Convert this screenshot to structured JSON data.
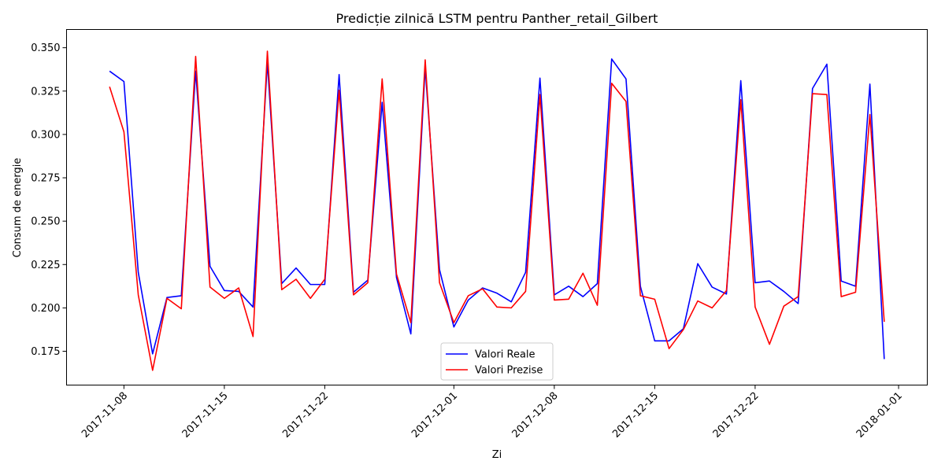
{
  "chart_data": {
    "type": "line",
    "title": "Predicție zilnică LSTM pentru Panther_retail_Gilbert",
    "xlabel": "Zi",
    "ylabel": "Consum de energie",
    "x_start": "2017-11-07",
    "x_ticks": [
      "2017-11-08",
      "2017-11-15",
      "2017-11-22",
      "2017-12-01",
      "2017-12-08",
      "2017-12-15",
      "2017-12-22",
      "2018-01-01"
    ],
    "y_ticks": [
      "0.175",
      "0.200",
      "0.225",
      "0.250",
      "0.275",
      "0.300",
      "0.325",
      "0.350"
    ],
    "ylim": [
      0.1555,
      0.3605
    ],
    "xlim": [
      "2017-11-04",
      "2018-01-03"
    ],
    "legend_position": "lower center",
    "grid": false,
    "series": [
      {
        "name": "Valori Reale",
        "color": "#0000ff",
        "values": [
          0.3365,
          0.3305,
          0.2205,
          0.1735,
          0.206,
          0.207,
          0.3365,
          0.224,
          0.21,
          0.2095,
          0.2005,
          0.3415,
          0.214,
          0.223,
          0.2135,
          0.2135,
          0.3345,
          0.209,
          0.216,
          0.3185,
          0.2175,
          0.185,
          0.3385,
          0.222,
          0.189,
          0.2045,
          0.2115,
          0.2085,
          0.2035,
          0.2205,
          0.3325,
          0.2075,
          0.2125,
          0.2065,
          0.214,
          0.3435,
          0.332,
          0.2125,
          0.181,
          0.181,
          0.188,
          0.2255,
          0.212,
          0.208,
          0.331,
          0.2145,
          0.2155,
          0.2095,
          0.2025,
          0.3265,
          0.3405,
          0.2155,
          0.2125,
          0.329,
          0.1705
        ]
      },
      {
        "name": "Valori Prezise",
        "color": "#ff0000",
        "values": [
          0.3275,
          0.3015,
          0.2075,
          0.164,
          0.2055,
          0.1995,
          0.345,
          0.212,
          0.2055,
          0.2115,
          0.1835,
          0.348,
          0.2105,
          0.2165,
          0.2055,
          0.2165,
          0.3255,
          0.2075,
          0.2145,
          0.332,
          0.2195,
          0.1915,
          0.343,
          0.2145,
          0.1915,
          0.207,
          0.211,
          0.2005,
          0.2,
          0.2095,
          0.323,
          0.2045,
          0.205,
          0.22,
          0.2015,
          0.3295,
          0.319,
          0.207,
          0.205,
          0.1765,
          0.1875,
          0.204,
          0.2,
          0.21,
          0.32,
          0.2005,
          0.179,
          0.201,
          0.2065,
          0.3235,
          0.323,
          0.2065,
          0.209,
          0.3115,
          0.192
        ]
      }
    ]
  }
}
